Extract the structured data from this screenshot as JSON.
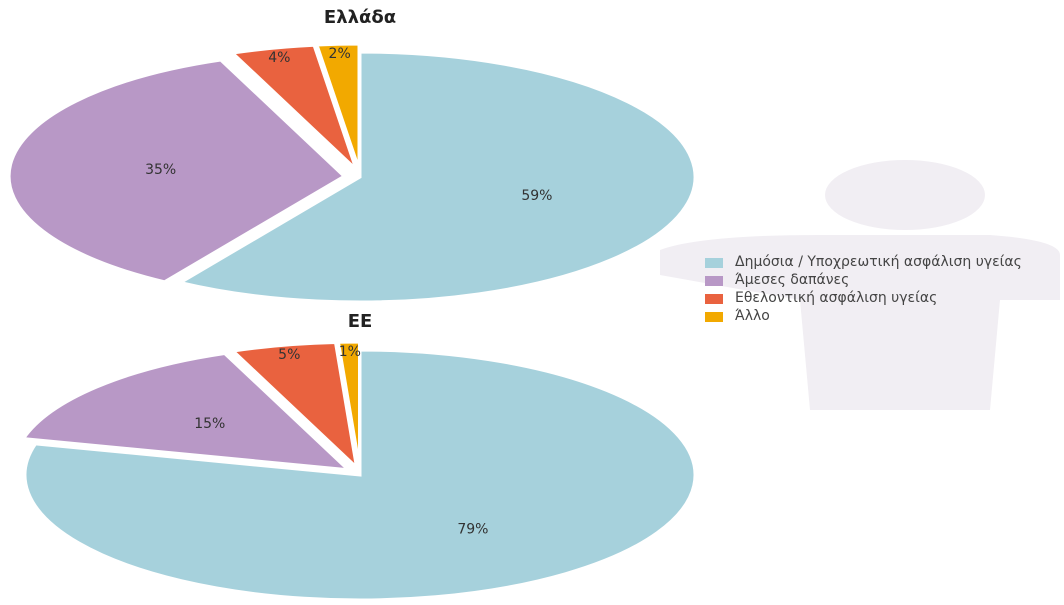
{
  "chart_data": [
    {
      "type": "pie",
      "title": "Ελλάδα",
      "categories": [
        "Δημόσια / Υποχρεωτική ασφάλιση υγείας",
        "Άμεσες δαπάνες",
        "Εθελοντική ασφάλιση υγείας",
        "Άλλο"
      ],
      "colors": [
        "#a6d1dc",
        "#b898c6",
        "#e9623f",
        "#f2a900"
      ],
      "values": [
        59,
        35,
        4,
        2
      ],
      "value_labels": [
        "59%",
        "35%",
        "4%",
        "2%"
      ]
    },
    {
      "type": "pie",
      "title": "ΕΕ",
      "values": [
        79,
        15,
        5,
        1
      ],
      "value_labels": [
        "79%",
        "15%",
        "5%",
        "1%"
      ]
    }
  ]
}
